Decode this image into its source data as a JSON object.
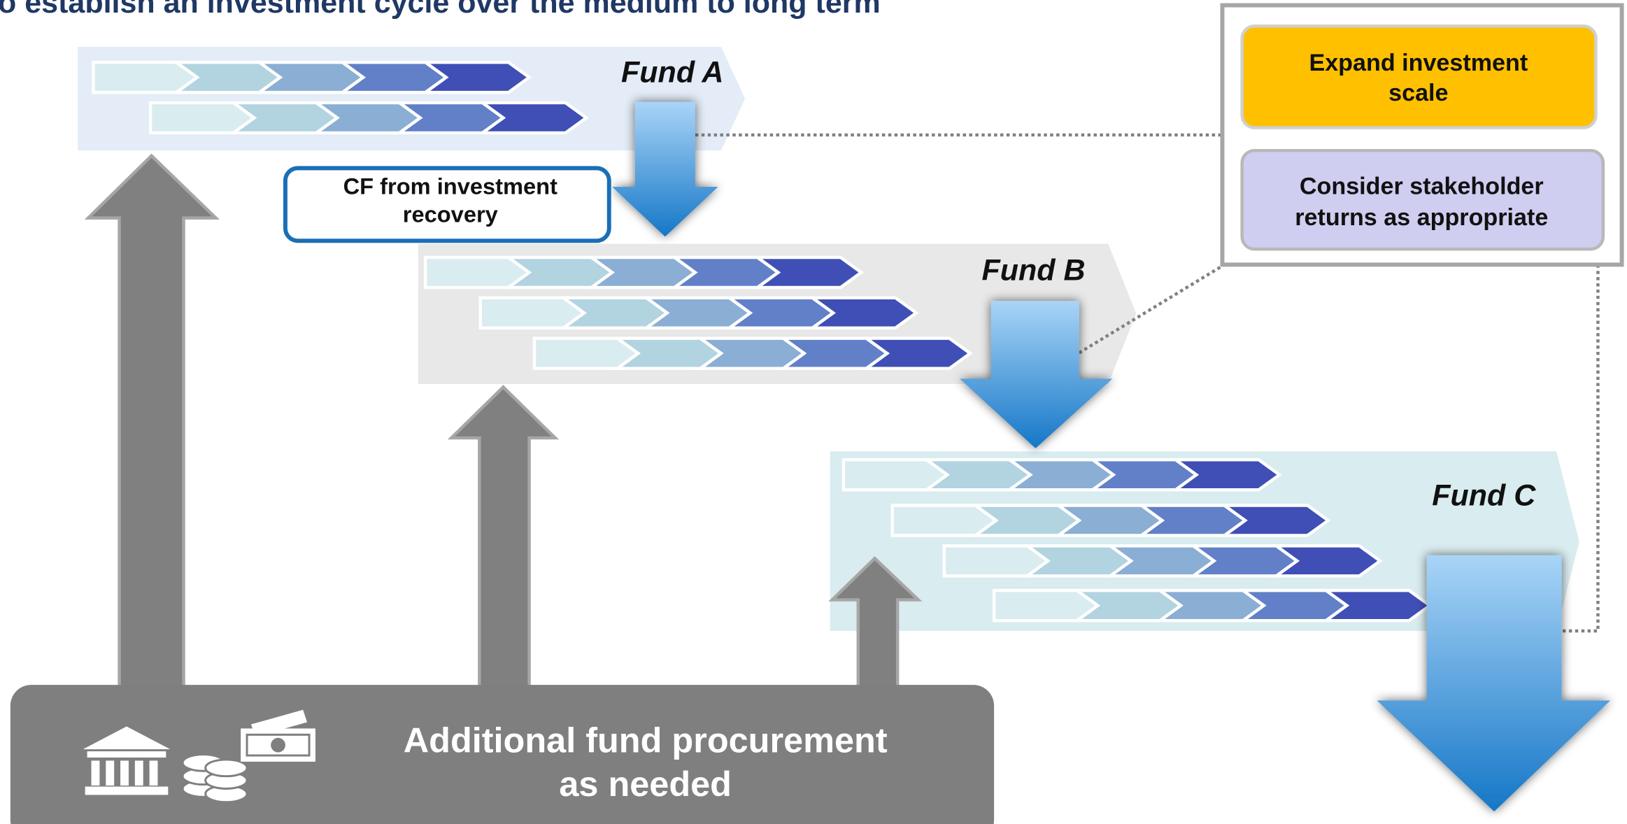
{
  "title": "o establish an investment cycle over the medium to long term",
  "funds": [
    {
      "label": "Fund A"
    },
    {
      "label": "Fund B"
    },
    {
      "label": "Fund C"
    }
  ],
  "cf_box": {
    "lines": [
      "CF from investment",
      "recovery"
    ]
  },
  "panel": {
    "items": [
      {
        "lines": [
          "Expand investment",
          "scale"
        ]
      },
      {
        "lines": [
          "Consider stakeholder",
          "returns as appropriate"
        ]
      }
    ]
  },
  "procurement": {
    "lines": [
      "Additional fund procurement",
      "as needed"
    ]
  }
}
